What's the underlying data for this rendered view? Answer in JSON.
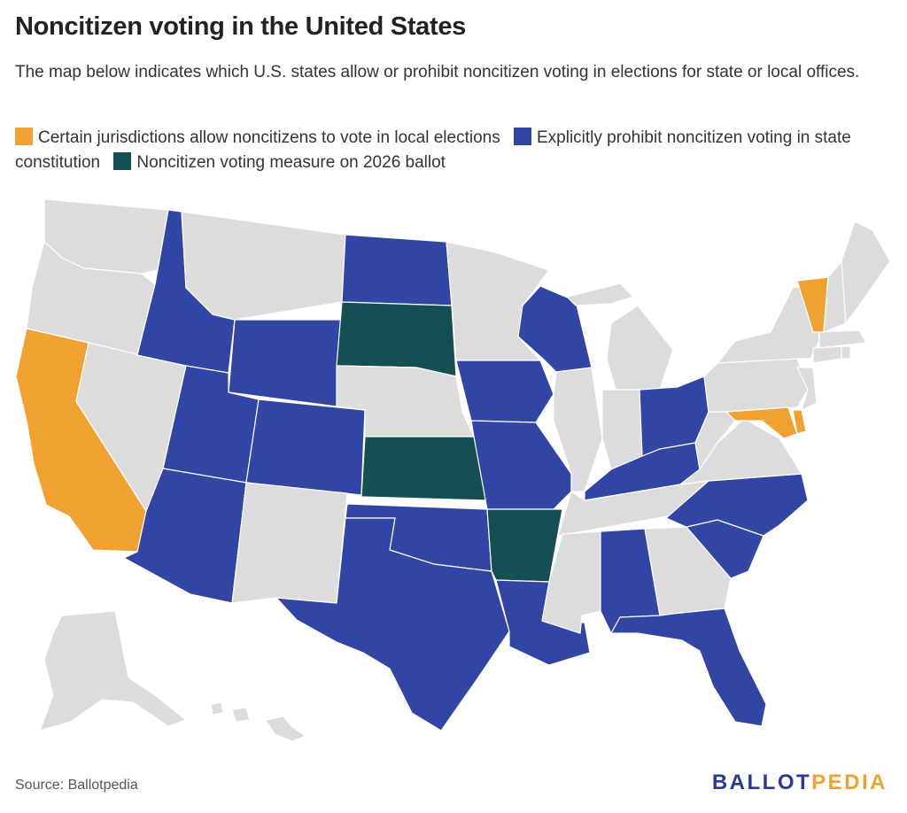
{
  "title": "Noncitizen voting in the United States",
  "subtitle": "The map below indicates which U.S. states allow or prohibit noncitizen voting in elections for state or local offices.",
  "legend": [
    {
      "label": "Certain jurisdictions allow noncitizens to vote in local elections",
      "color": "#f0a231"
    },
    {
      "label": "Explicitly prohibit noncitizen voting in state constitution",
      "color": "#3145a5"
    },
    {
      "label": "Noncitizen voting measure on 2026 ballot",
      "color": "#134f53"
    }
  ],
  "colors": {
    "allow": "#f0a231",
    "prohibit": "#3145a5",
    "ballot": "#134f53",
    "none": "#dcdcdc"
  },
  "states": {
    "allow": [
      "California",
      "Vermont",
      "Maryland"
    ],
    "prohibit": [
      "Idaho",
      "Wyoming",
      "North Dakota",
      "Wisconsin",
      "Iowa",
      "Missouri",
      "Ohio",
      "Kentucky",
      "North Carolina",
      "South Carolina",
      "Utah",
      "Colorado",
      "Arizona",
      "Oklahoma",
      "Texas",
      "Louisiana",
      "Alabama",
      "Florida"
    ],
    "ballot": [
      "South Dakota",
      "Kansas",
      "Arkansas"
    ]
  },
  "source": "Source: Ballotpedia",
  "logo": {
    "part1": "BALLOT",
    "part2": "PEDIA"
  }
}
